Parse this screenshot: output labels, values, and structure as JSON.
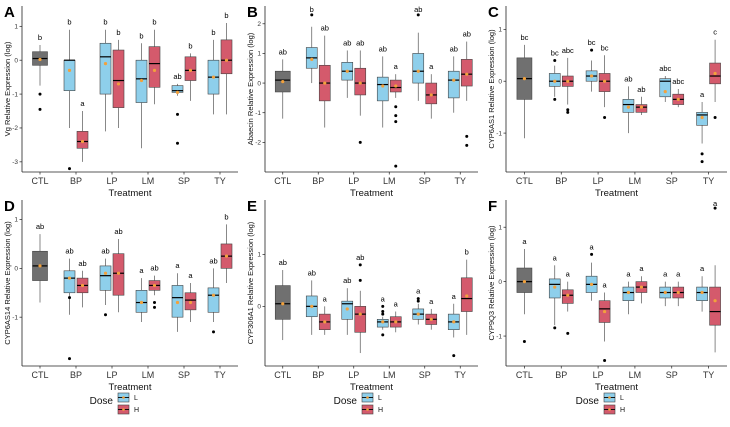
{
  "colors": {
    "ctl": "#707070",
    "L": "#8ecfeb",
    "H": "#d45a6c",
    "mean": "#f2a13c",
    "median": "#000000",
    "outlier": "#000000"
  },
  "chart_data": [
    {
      "type": "box",
      "label": "A",
      "ylabel": "Vg Relative Expression (log)",
      "xlabel": "Treatment",
      "categories": [
        "CTL",
        "BP",
        "LP",
        "LM",
        "SP",
        "TY"
      ],
      "ylim": [
        -3.3,
        1.6
      ],
      "yticks": [
        1,
        0,
        -1,
        -2,
        -3
      ],
      "boxes": [
        {
          "cat": "CTL",
          "dose": "",
          "q1": -0.15,
          "med": 0.05,
          "q3": 0.25,
          "lo": -0.75,
          "hi": 0.45,
          "mean": 0.02,
          "out": [
            -1.0,
            -1.45
          ],
          "sig": "b"
        },
        {
          "cat": "BP",
          "dose": "L",
          "q1": -0.9,
          "med": 0.0,
          "q3": 0.0,
          "lo": -2.0,
          "hi": 0.9,
          "mean": -0.3,
          "out": [
            -3.2
          ],
          "sig": "b"
        },
        {
          "cat": "BP",
          "dose": "H",
          "q1": -2.6,
          "med": -2.4,
          "q3": -2.1,
          "lo": -3.0,
          "hi": -1.5,
          "mean": -2.4,
          "out": [],
          "sig": "a"
        },
        {
          "cat": "LP",
          "dose": "L",
          "q1": -1.0,
          "med": 0.1,
          "q3": 0.5,
          "lo": -2.1,
          "hi": 0.9,
          "mean": -0.1,
          "out": [],
          "sig": "b"
        },
        {
          "cat": "LP",
          "dose": "H",
          "q1": -1.4,
          "med": -0.6,
          "q3": 0.3,
          "lo": -2.0,
          "hi": 0.6,
          "mean": -0.7,
          "out": [],
          "sig": "b"
        },
        {
          "cat": "LM",
          "dose": "L",
          "q1": -1.25,
          "med": -0.55,
          "q3": 0.0,
          "lo": -2.6,
          "hi": 0.5,
          "mean": -0.6,
          "out": [],
          "sig": "b"
        },
        {
          "cat": "LM",
          "dose": "H",
          "q1": -0.8,
          "med": -0.1,
          "q3": 0.4,
          "lo": -1.3,
          "hi": 0.9,
          "mean": -0.3,
          "out": [],
          "sig": "b"
        },
        {
          "cat": "SP",
          "dose": "L",
          "q1": -0.95,
          "med": -0.9,
          "q3": -0.75,
          "lo": -1.05,
          "hi": -0.7,
          "mean": -0.95,
          "out": [
            -1.6,
            -2.45
          ],
          "sig": "ab"
        },
        {
          "cat": "SP",
          "dose": "H",
          "q1": -0.6,
          "med": -0.3,
          "q3": 0.1,
          "lo": -1.2,
          "hi": 0.2,
          "mean": -0.3,
          "out": [],
          "sig": "b"
        },
        {
          "cat": "TY",
          "dose": "L",
          "q1": -1.0,
          "med": -0.5,
          "q3": 0.0,
          "lo": -1.6,
          "hi": 0.6,
          "mean": -0.5,
          "out": [],
          "sig": "b"
        },
        {
          "cat": "TY",
          "dose": "H",
          "q1": -0.4,
          "med": 0.0,
          "q3": 0.6,
          "lo": -1.6,
          "hi": 1.1,
          "mean": 0.0,
          "out": [],
          "sig": "b"
        }
      ]
    },
    {
      "type": "box",
      "label": "B",
      "ylabel": "Abaecin Relative Expression (log)",
      "xlabel": "Treatment",
      "categories": [
        "CTL",
        "BP",
        "LP",
        "LM",
        "SP",
        "TY"
      ],
      "ylim": [
        -3.0,
        2.6
      ],
      "yticks": [
        2,
        1,
        0,
        -1,
        -2
      ],
      "boxes": [
        {
          "cat": "CTL",
          "dose": "",
          "q1": -0.3,
          "med": 0.1,
          "q3": 0.4,
          "lo": -1.2,
          "hi": 0.8,
          "mean": 0.05,
          "out": [],
          "sig": "ab"
        },
        {
          "cat": "BP",
          "dose": "L",
          "q1": 0.5,
          "med": 0.85,
          "q3": 1.2,
          "lo": 0.0,
          "hi": 1.9,
          "mean": 0.8,
          "out": [
            2.3
          ],
          "sig": "b"
        },
        {
          "cat": "BP",
          "dose": "H",
          "q1": -0.6,
          "med": 0.0,
          "q3": 0.6,
          "lo": -1.5,
          "hi": 1.6,
          "mean": 0.0,
          "out": [],
          "sig": "ab"
        },
        {
          "cat": "LP",
          "dose": "L",
          "q1": 0.1,
          "med": 0.4,
          "q3": 0.7,
          "lo": -0.5,
          "hi": 1.1,
          "mean": 0.4,
          "out": [],
          "sig": "ab"
        },
        {
          "cat": "LP",
          "dose": "H",
          "q1": -0.4,
          "med": 0.0,
          "q3": 0.5,
          "lo": -1.1,
          "hi": 1.1,
          "mean": 0.0,
          "out": [
            -2.0
          ],
          "sig": "ab"
        },
        {
          "cat": "LM",
          "dose": "L",
          "q1": -0.6,
          "med": -0.05,
          "q3": 0.2,
          "lo": -1.5,
          "hi": 0.9,
          "mean": -0.1,
          "out": [],
          "sig": "ab"
        },
        {
          "cat": "LM",
          "dose": "H",
          "q1": -0.3,
          "med": -0.15,
          "q3": 0.1,
          "lo": -0.5,
          "hi": 0.3,
          "mean": -0.1,
          "out": [
            -0.8,
            -1.1,
            -1.3,
            -2.8
          ],
          "sig": "a"
        },
        {
          "cat": "SP",
          "dose": "L",
          "q1": 0.0,
          "med": 0.4,
          "q3": 1.0,
          "lo": -0.6,
          "hi": 1.7,
          "mean": 0.4,
          "out": [
            2.3
          ],
          "sig": "ab"
        },
        {
          "cat": "SP",
          "dose": "H",
          "q1": -0.7,
          "med": -0.4,
          "q3": 0.0,
          "lo": -1.2,
          "hi": 0.3,
          "mean": -0.4,
          "out": [],
          "sig": "a"
        },
        {
          "cat": "TY",
          "dose": "L",
          "q1": -0.5,
          "med": 0.1,
          "q3": 0.4,
          "lo": -1.0,
          "hi": 0.9,
          "mean": 0.1,
          "out": [],
          "sig": "ab"
        },
        {
          "cat": "TY",
          "dose": "H",
          "q1": -0.1,
          "med": 0.3,
          "q3": 0.8,
          "lo": -0.6,
          "hi": 1.4,
          "mean": 0.3,
          "out": [
            -1.8,
            -2.1
          ],
          "sig": "ab"
        }
      ]
    },
    {
      "type": "box",
      "label": "C",
      "ylabel": "CYP6AS1 Relative Expression (log)",
      "xlabel": "Treatment",
      "categories": [
        "CTL",
        "BP",
        "LP",
        "LM",
        "SP",
        "TY"
      ],
      "ylim": [
        -1.75,
        1.45
      ],
      "yticks": [
        1,
        0,
        -1
      ],
      "boxes": [
        {
          "cat": "CTL",
          "dose": "",
          "q1": -0.35,
          "med": 0.05,
          "q3": 0.45,
          "lo": -1.1,
          "hi": 0.7,
          "mean": 0.05,
          "out": [],
          "sig": "bc"
        },
        {
          "cat": "BP",
          "dose": "L",
          "q1": -0.1,
          "med": 0.0,
          "q3": 0.15,
          "lo": -0.3,
          "hi": 0.3,
          "mean": 0.0,
          "out": [
            0.4,
            -0.35
          ],
          "sig": "bc"
        },
        {
          "cat": "BP",
          "dose": "H",
          "q1": -0.1,
          "med": 0.0,
          "q3": 0.1,
          "lo": -0.45,
          "hi": 0.45,
          "mean": 0.0,
          "out": [
            -0.55,
            -0.6
          ],
          "sig": "abc"
        },
        {
          "cat": "LP",
          "dose": "L",
          "q1": 0.0,
          "med": 0.1,
          "q3": 0.2,
          "lo": -0.2,
          "hi": 0.4,
          "mean": 0.1,
          "out": [
            0.6
          ],
          "sig": "bc"
        },
        {
          "cat": "LP",
          "dose": "H",
          "q1": -0.2,
          "med": 0.0,
          "q3": 0.15,
          "lo": -0.5,
          "hi": 0.5,
          "mean": 0.0,
          "out": [
            -0.7
          ],
          "sig": "bc"
        },
        {
          "cat": "LM",
          "dose": "L",
          "q1": -0.6,
          "med": -0.45,
          "q3": -0.35,
          "lo": -1.0,
          "hi": -0.1,
          "mean": -0.5,
          "out": [],
          "sig": "ab"
        },
        {
          "cat": "LM",
          "dose": "H",
          "q1": -0.6,
          "med": -0.5,
          "q3": -0.45,
          "lo": -0.65,
          "hi": -0.3,
          "mean": -0.5,
          "out": [],
          "sig": "ab"
        },
        {
          "cat": "SP",
          "dose": "L",
          "q1": -0.3,
          "med": 0.0,
          "q3": 0.05,
          "lo": -0.4,
          "hi": 0.1,
          "mean": -0.2,
          "out": [],
          "sig": "abc"
        },
        {
          "cat": "SP",
          "dose": "H",
          "q1": -0.45,
          "med": -0.35,
          "q3": -0.25,
          "lo": -0.5,
          "hi": -0.15,
          "mean": -0.35,
          "out": [],
          "sig": "abc"
        },
        {
          "cat": "TY",
          "dose": "L",
          "q1": -0.85,
          "med": -0.65,
          "q3": -0.6,
          "lo": -1.2,
          "hi": -0.4,
          "mean": -0.7,
          "out": [
            -1.4,
            -1.55
          ],
          "sig": "a"
        },
        {
          "cat": "TY",
          "dose": "H",
          "q1": -0.05,
          "med": 0.1,
          "q3": 0.35,
          "lo": -0.4,
          "hi": 0.8,
          "mean": 0.15,
          "out": [
            -0.7
          ],
          "sig": "c"
        }
      ]
    },
    {
      "type": "box",
      "label": "D",
      "ylabel": "CYP6AS14 Relative Expression (log)",
      "xlabel": "Treatment",
      "categories": [
        "CTL",
        "BP",
        "LP",
        "LM",
        "SP",
        "TY"
      ],
      "ylim": [
        -2.0,
        1.4
      ],
      "yticks": [
        1,
        0,
        -1
      ],
      "boxes": [
        {
          "cat": "CTL",
          "dose": "",
          "q1": -0.25,
          "med": 0.05,
          "q3": 0.35,
          "lo": -0.7,
          "hi": 0.7,
          "mean": 0.05,
          "out": [],
          "sig": "ab"
        },
        {
          "cat": "BP",
          "dose": "L",
          "q1": -0.5,
          "med": -0.2,
          "q3": -0.05,
          "lo": -0.95,
          "hi": 0.2,
          "mean": -0.2,
          "out": [
            -0.6,
            -1.85
          ],
          "sig": "ab"
        },
        {
          "cat": "BP",
          "dose": "H",
          "q1": -0.5,
          "med": -0.35,
          "q3": -0.2,
          "lo": -0.8,
          "hi": -0.05,
          "mean": -0.35,
          "out": [],
          "sig": "ab"
        },
        {
          "cat": "LP",
          "dose": "L",
          "q1": -0.45,
          "med": -0.15,
          "q3": 0.05,
          "lo": -0.75,
          "hi": 0.2,
          "mean": -0.1,
          "out": [
            -0.95
          ],
          "sig": "ab"
        },
        {
          "cat": "LP",
          "dose": "H",
          "q1": -0.55,
          "med": -0.1,
          "q3": 0.3,
          "lo": -0.9,
          "hi": 0.6,
          "mean": -0.1,
          "out": [],
          "sig": "ab"
        },
        {
          "cat": "LM",
          "dose": "L",
          "q1": -0.9,
          "med": -0.7,
          "q3": -0.45,
          "lo": -1.1,
          "hi": -0.2,
          "mean": -0.7,
          "out": [],
          "sig": "a"
        },
        {
          "cat": "LM",
          "dose": "H",
          "q1": -0.45,
          "med": -0.35,
          "q3": -0.25,
          "lo": -0.55,
          "hi": -0.15,
          "mean": -0.35,
          "out": [
            -0.7,
            -0.8
          ],
          "sig": "ab"
        },
        {
          "cat": "SP",
          "dose": "L",
          "q1": -1.0,
          "med": -0.6,
          "q3": -0.35,
          "lo": -1.3,
          "hi": -0.1,
          "mean": -0.7,
          "out": [],
          "sig": "a"
        },
        {
          "cat": "SP",
          "dose": "H",
          "q1": -0.85,
          "med": -0.65,
          "q3": -0.5,
          "lo": -1.1,
          "hi": -0.3,
          "mean": -0.7,
          "out": [],
          "sig": "a"
        },
        {
          "cat": "TY",
          "dose": "L",
          "q1": -0.9,
          "med": -0.55,
          "q3": -0.4,
          "lo": -1.1,
          "hi": 0.0,
          "mean": -0.55,
          "out": [
            -1.3
          ],
          "sig": "ab"
        },
        {
          "cat": "TY",
          "dose": "H",
          "q1": 0.0,
          "med": 0.25,
          "q3": 0.5,
          "lo": -0.3,
          "hi": 0.9,
          "mean": 0.25,
          "out": [],
          "sig": "b"
        }
      ]
    },
    {
      "type": "box",
      "label": "E",
      "ylabel": "CYP306A1 Relative Expression (log)",
      "xlabel": "Treatment",
      "categories": [
        "CTL",
        "BP",
        "LP",
        "LM",
        "SP",
        "TY"
      ],
      "ylim": [
        -1.15,
        2.05
      ],
      "yticks": [
        1,
        0
      ],
      "boxes": [
        {
          "cat": "CTL",
          "dose": "",
          "q1": -0.25,
          "med": 0.05,
          "q3": 0.4,
          "lo": -0.65,
          "hi": 0.7,
          "mean": 0.05,
          "out": [],
          "sig": "ab"
        },
        {
          "cat": "BP",
          "dose": "L",
          "q1": -0.2,
          "med": 0.0,
          "q3": 0.2,
          "lo": -0.55,
          "hi": 0.5,
          "mean": 0.0,
          "out": [],
          "sig": "ab"
        },
        {
          "cat": "BP",
          "dose": "H",
          "q1": -0.45,
          "med": -0.3,
          "q3": -0.15,
          "lo": -0.55,
          "hi": 0.0,
          "mean": -0.3,
          "out": [],
          "sig": "a"
        },
        {
          "cat": "LP",
          "dose": "L",
          "q1": -0.25,
          "med": 0.05,
          "q3": 0.1,
          "lo": -0.55,
          "hi": 0.35,
          "mean": -0.05,
          "out": [],
          "sig": "ab"
        },
        {
          "cat": "LP",
          "dose": "H",
          "q1": -0.5,
          "med": -0.15,
          "q3": 0.0,
          "lo": -0.9,
          "hi": 0.3,
          "mean": -0.15,
          "out": [
            0.5,
            0.8
          ],
          "sig": "ab"
        },
        {
          "cat": "LM",
          "dose": "L",
          "q1": -0.4,
          "med": -0.3,
          "q3": -0.25,
          "lo": -0.45,
          "hi": -0.2,
          "mean": -0.3,
          "out": [
            0.0,
            -0.1,
            -0.15,
            -0.55
          ],
          "sig": "a"
        },
        {
          "cat": "LM",
          "dose": "H",
          "q1": -0.4,
          "med": -0.3,
          "q3": -0.2,
          "lo": -0.5,
          "hi": -0.1,
          "mean": -0.3,
          "out": [],
          "sig": "a"
        },
        {
          "cat": "SP",
          "dose": "L",
          "q1": -0.25,
          "med": -0.15,
          "q3": -0.05,
          "lo": -0.35,
          "hi": 0.05,
          "mean": -0.15,
          "out": [
            0.1,
            0.15
          ],
          "sig": "a"
        },
        {
          "cat": "SP",
          "dose": "H",
          "q1": -0.35,
          "med": -0.25,
          "q3": -0.15,
          "lo": -0.45,
          "hi": -0.05,
          "mean": -0.25,
          "out": [],
          "sig": "a"
        },
        {
          "cat": "TY",
          "dose": "L",
          "q1": -0.45,
          "med": -0.3,
          "q3": -0.15,
          "lo": -0.6,
          "hi": 0.05,
          "mean": -0.3,
          "out": [
            -0.95
          ],
          "sig": "a"
        },
        {
          "cat": "TY",
          "dose": "H",
          "q1": -0.1,
          "med": 0.15,
          "q3": 0.55,
          "lo": -0.55,
          "hi": 0.9,
          "mean": 0.2,
          "out": [],
          "sig": "b"
        }
      ]
    },
    {
      "type": "box",
      "label": "F",
      "ylabel": "CYP9Q3 Relative Expression (log)",
      "xlabel": "Treatment",
      "categories": [
        "CTL",
        "BP",
        "LP",
        "LM",
        "SP",
        "TY"
      ],
      "ylim": [
        -1.55,
        1.5
      ],
      "yticks": [
        1,
        0,
        -1
      ],
      "boxes": [
        {
          "cat": "CTL",
          "dose": "",
          "q1": -0.2,
          "med": 0.0,
          "q3": 0.25,
          "lo": -0.6,
          "hi": 0.6,
          "mean": 0.0,
          "out": [
            -1.1
          ],
          "sig": "a"
        },
        {
          "cat": "BP",
          "dose": "L",
          "q1": -0.3,
          "med": -0.05,
          "q3": 0.05,
          "lo": -0.8,
          "hi": 0.3,
          "mean": -0.1,
          "out": [
            -0.85
          ],
          "sig": "a"
        },
        {
          "cat": "BP",
          "dose": "H",
          "q1": -0.4,
          "med": -0.25,
          "q3": -0.15,
          "lo": -0.55,
          "hi": 0.0,
          "mean": -0.25,
          "out": [
            -0.95
          ],
          "sig": "a"
        },
        {
          "cat": "LP",
          "dose": "L",
          "q1": -0.2,
          "med": -0.05,
          "q3": 0.1,
          "lo": -0.35,
          "hi": 0.35,
          "mean": -0.05,
          "out": [
            0.5
          ],
          "sig": "a"
        },
        {
          "cat": "LP",
          "dose": "H",
          "q1": -0.75,
          "med": -0.5,
          "q3": -0.35,
          "lo": -1.1,
          "hi": -0.2,
          "mean": -0.55,
          "out": [
            -1.45
          ],
          "sig": "a"
        },
        {
          "cat": "LM",
          "dose": "L",
          "q1": -0.35,
          "med": -0.2,
          "q3": -0.1,
          "lo": -0.6,
          "hi": 0.0,
          "mean": -0.2,
          "out": [],
          "sig": "a"
        },
        {
          "cat": "LM",
          "dose": "H",
          "q1": -0.2,
          "med": -0.1,
          "q3": 0.0,
          "lo": -0.4,
          "hi": 0.1,
          "mean": -0.1,
          "out": [],
          "sig": "a"
        },
        {
          "cat": "SP",
          "dose": "L",
          "q1": -0.3,
          "med": -0.2,
          "q3": -0.1,
          "lo": -0.45,
          "hi": 0.0,
          "mean": -0.2,
          "out": [],
          "sig": "a"
        },
        {
          "cat": "SP",
          "dose": "H",
          "q1": -0.3,
          "med": -0.2,
          "q3": -0.1,
          "lo": -0.45,
          "hi": 0.0,
          "mean": -0.2,
          "out": [],
          "sig": "a"
        },
        {
          "cat": "TY",
          "dose": "L",
          "q1": -0.35,
          "med": -0.2,
          "q3": -0.1,
          "lo": -0.55,
          "hi": 0.1,
          "mean": -0.2,
          "out": [],
          "sig": "a"
        },
        {
          "cat": "TY",
          "dose": "H",
          "q1": -0.8,
          "med": -0.55,
          "q3": -0.1,
          "lo": -1.3,
          "hi": 0.3,
          "mean": -0.35,
          "out": [
            1.35
          ],
          "sig": "a"
        }
      ]
    }
  ],
  "legend": {
    "title": "Dose",
    "items": [
      {
        "key": "L",
        "label": "L"
      },
      {
        "key": "H",
        "label": "H"
      }
    ]
  }
}
